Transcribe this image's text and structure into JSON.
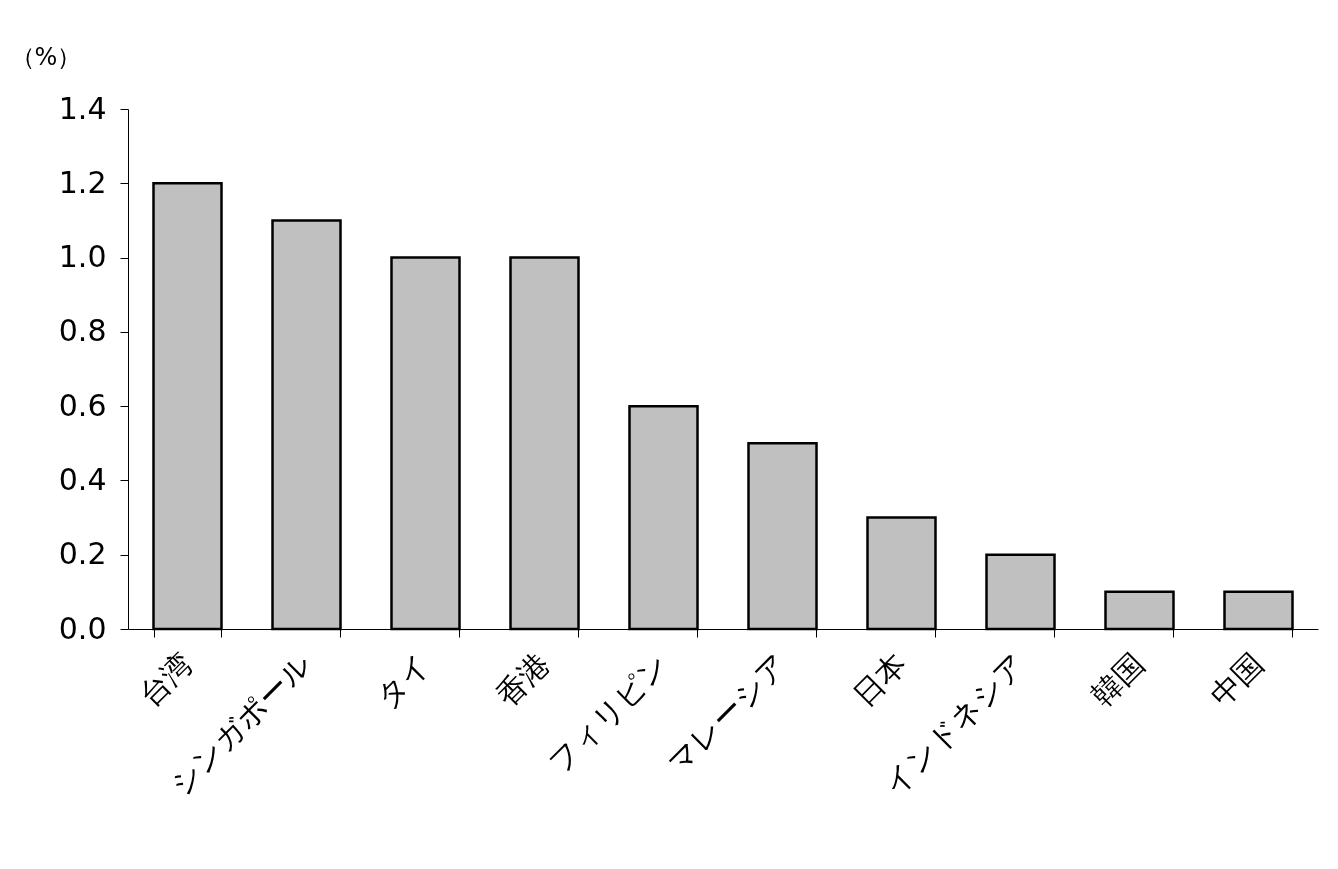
{
  "chart_data": {
    "type": "bar",
    "ylabel": "（%）",
    "categories": [
      "台湾",
      "シンガポール",
      "タイ",
      "香港",
      "フィリピン",
      "マレーシア",
      "日本",
      "インドネシア",
      "韓国",
      "中国"
    ],
    "values": [
      1.2,
      1.1,
      1.0,
      1.0,
      0.6,
      0.5,
      0.3,
      0.2,
      0.1,
      0.1
    ],
    "color": "#c0c0c0",
    "ylim": [
      0,
      1.4
    ],
    "yticks": [
      {
        "value": 0,
        "label": "0.0"
      },
      {
        "value": 0.2,
        "label": "0.2"
      },
      {
        "value": 0.4,
        "label": "0.4"
      },
      {
        "value": 0.6,
        "label": "0.6"
      },
      {
        "value": 0.8,
        "label": "0.8"
      },
      {
        "value": 1,
        "label": "1.0"
      },
      {
        "value": 1.2,
        "label": "1.2"
      },
      {
        "value": 1.4,
        "label": "1.4"
      }
    ],
    "grid": false
  }
}
